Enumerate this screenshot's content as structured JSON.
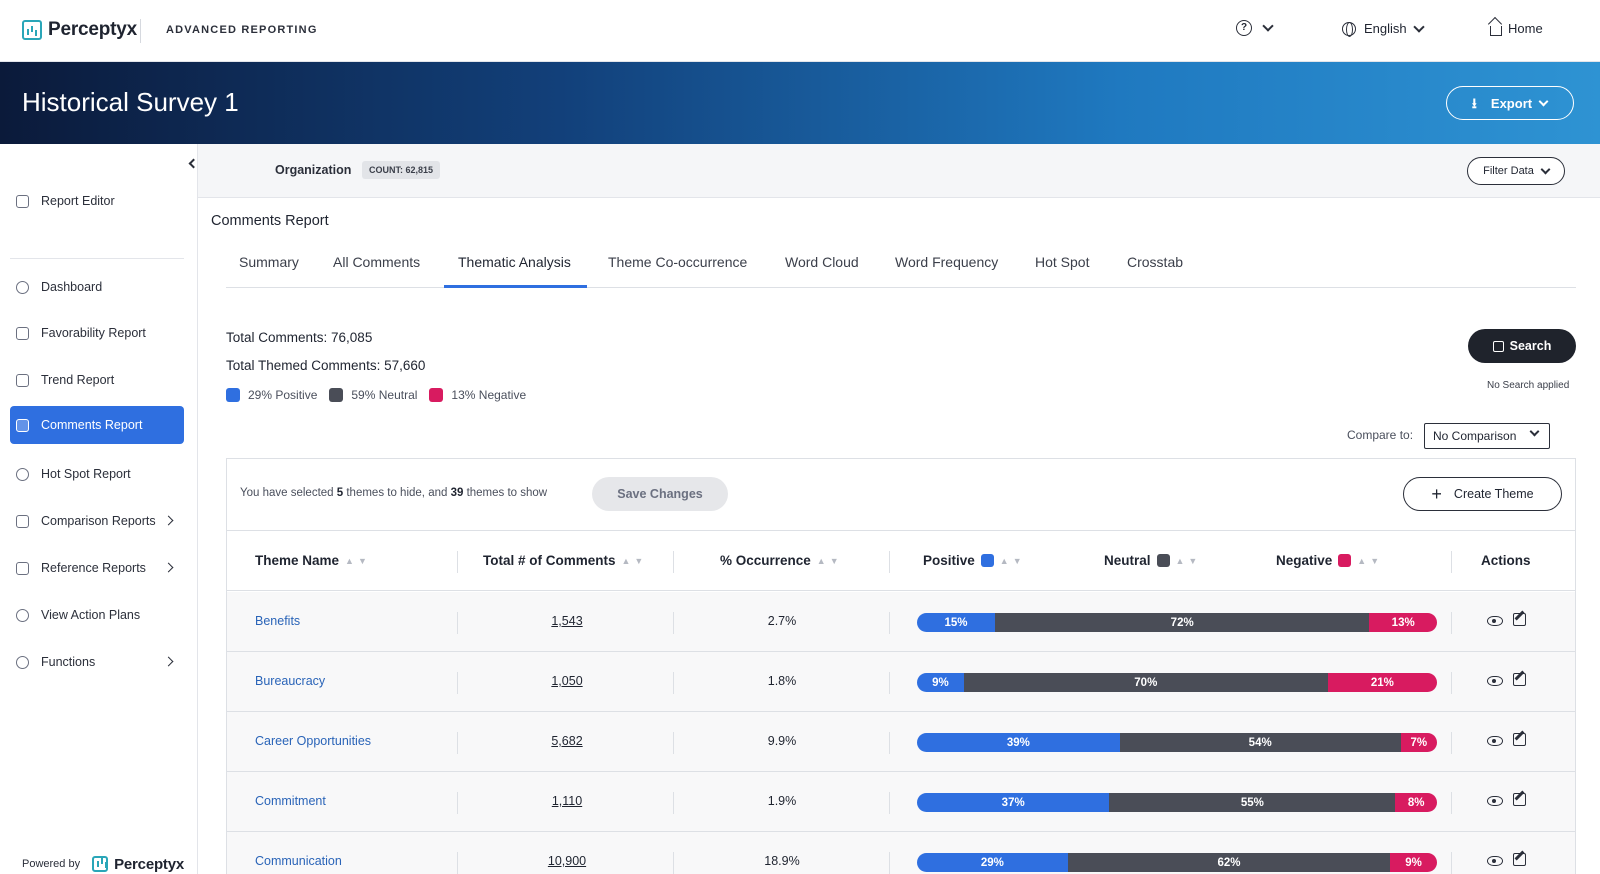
{
  "header": {
    "logo_text": "Perceptyx",
    "app_title": "ADVANCED REPORTING",
    "help_icon": "question-circle-icon",
    "language": "English",
    "home_label": "Home"
  },
  "banner": {
    "title": "Historical Survey 1",
    "export_label": "Export"
  },
  "sidebar": {
    "items": [
      {
        "label": "Report Editor",
        "icon": "edit-icon"
      },
      {
        "label": "Dashboard",
        "icon": "gauge-icon"
      },
      {
        "label": "Favorability Report",
        "icon": "thumbs-up-icon"
      },
      {
        "label": "Trend Report",
        "icon": "trend-icon"
      },
      {
        "label": "Comments Report",
        "icon": "comments-icon"
      },
      {
        "label": "Hot Spot Report",
        "icon": "target-icon"
      },
      {
        "label": "Comparison Reports",
        "icon": "scale-icon"
      },
      {
        "label": "Reference Reports",
        "icon": "list-icon"
      },
      {
        "label": "View Action Plans",
        "icon": "check-circle-icon"
      },
      {
        "label": "Functions",
        "icon": "gear-icon"
      }
    ],
    "powered_by": "Powered by",
    "powered_logo": "Perceptyx"
  },
  "org_bar": {
    "label": "Organization",
    "count": "COUNT: 62,815",
    "filter_label": "Filter Data"
  },
  "report": {
    "title": "Comments Report",
    "tabs": [
      "Summary",
      "All Comments",
      "Thematic Analysis",
      "Theme Co-occurrence",
      "Word Cloud",
      "Word Frequency",
      "Hot Spot",
      "Crosstab"
    ],
    "active_tab": "Thematic Analysis",
    "total_comments": "Total Comments: 76,085",
    "total_themed": "Total Themed Comments: 57,660",
    "legend": {
      "positive": "29% Positive",
      "neutral": "59% Neutral",
      "negative": "13% Negative"
    },
    "search_label": "Search",
    "no_search": "No Search applied",
    "compare_label": "Compare to:",
    "compare_value": "No Comparison"
  },
  "colors": {
    "positive": "#2f6fe0",
    "neutral": "#4a4d57",
    "negative": "#d81b60",
    "accent": "#2f6fe0"
  },
  "table": {
    "selection": {
      "pre": "You have selected ",
      "hide_count": "5",
      "mid": " themes to hide, and ",
      "show_count": "39",
      "post": " themes to show"
    },
    "save_label": "Save Changes",
    "create_label": "Create Theme",
    "headers": {
      "theme": "Theme Name",
      "total": "Total # of Comments",
      "occurrence": "% Occurrence",
      "positive": "Positive",
      "neutral": "Neutral",
      "negative": "Negative",
      "actions": "Actions"
    },
    "rows": [
      {
        "name": "Benefits",
        "total": "1,543",
        "occurrence": "2.7%",
        "positive": 15,
        "neutral": 72,
        "negative": 13
      },
      {
        "name": "Bureaucracy",
        "total": "1,050",
        "occurrence": "1.8%",
        "positive": 9,
        "neutral": 70,
        "negative": 21
      },
      {
        "name": "Career Opportunities",
        "total": "5,682",
        "occurrence": "9.9%",
        "positive": 39,
        "neutral": 54,
        "negative": 7
      },
      {
        "name": "Commitment",
        "total": "1,110",
        "occurrence": "1.9%",
        "positive": 37,
        "neutral": 55,
        "negative": 8
      },
      {
        "name": "Communication",
        "total": "10,900",
        "occurrence": "18.9%",
        "positive": 29,
        "neutral": 62,
        "negative": 9
      }
    ]
  }
}
